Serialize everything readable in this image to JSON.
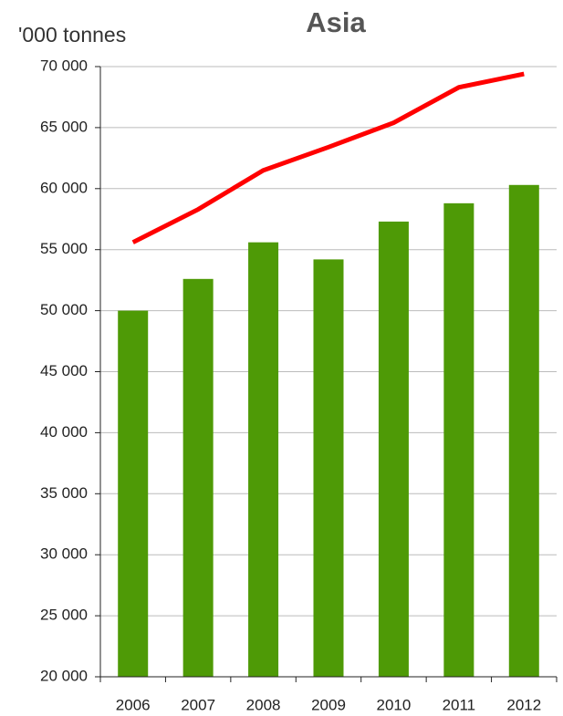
{
  "chart_data": {
    "type": "bar-line",
    "title": "Asia",
    "y_label": "'000 tonnes",
    "categories": [
      "2006",
      "2007",
      "2008",
      "2009",
      "2010",
      "2011",
      "2012"
    ],
    "series": [
      {
        "type": "bar",
        "color": "#4e9a06",
        "values": [
          50000,
          52600,
          55600,
          54200,
          57300,
          58800,
          60300
        ]
      },
      {
        "type": "line",
        "color": "#ff0000",
        "values": [
          55600,
          58300,
          61500,
          63400,
          65400,
          68300,
          69400
        ]
      }
    ],
    "ylim": [
      20000,
      70000
    ],
    "yticks": [
      {
        "value": 20000,
        "label": "20 000"
      },
      {
        "value": 25000,
        "label": "25 000"
      },
      {
        "value": 30000,
        "label": "30 000"
      },
      {
        "value": 35000,
        "label": "35 000"
      },
      {
        "value": 40000,
        "label": "40 000"
      },
      {
        "value": 45000,
        "label": "45 000"
      },
      {
        "value": 50000,
        "label": "50 000"
      },
      {
        "value": 55000,
        "label": "55 000"
      },
      {
        "value": 60000,
        "label": "60 000"
      },
      {
        "value": 65000,
        "label": "65 000"
      },
      {
        "value": 70000,
        "label": "70 000"
      }
    ],
    "grid": true
  }
}
